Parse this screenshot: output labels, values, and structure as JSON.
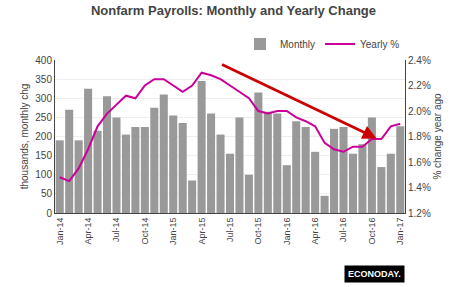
{
  "chart_data": {
    "type": "bar",
    "title": "Nonfarm Payrolls: Monthly and Yearly Change",
    "y_label": "thousands, monthly chg",
    "y2_label": "% change year ago",
    "categories": [
      "Jan-14",
      null,
      null,
      "Apr-14",
      null,
      null,
      "Jul-14",
      null,
      null,
      "Oct-14",
      null,
      null,
      "Jan-15",
      null,
      null,
      "Apr-15",
      null,
      null,
      "Jul-15",
      null,
      null,
      "Oct-15",
      null,
      null,
      "Jan-16",
      null,
      null,
      "Apr-16",
      null,
      null,
      "Jul-16",
      null,
      null,
      "Oct-16",
      null,
      null,
      "Jan-17"
    ],
    "series": [
      {
        "name": "Monthly",
        "type": "bar",
        "color": "#999999",
        "values": [
          190,
          270,
          190,
          325,
          215,
          305,
          250,
          205,
          225,
          225,
          275,
          310,
          255,
          235,
          85,
          345,
          260,
          205,
          155,
          250,
          100,
          315,
          265,
          260,
          125,
          240,
          225,
          160,
          45,
          220,
          225,
          155,
          180,
          250,
          120,
          155,
          227
        ]
      },
      {
        "name": "Yearly %",
        "type": "line",
        "color": "#cc0099",
        "axis": "y2",
        "values": [
          1.48,
          1.45,
          1.55,
          1.7,
          1.88,
          1.98,
          2.05,
          2.12,
          2.1,
          2.2,
          2.25,
          2.25,
          2.2,
          2.15,
          2.2,
          2.3,
          2.28,
          2.25,
          2.2,
          2.15,
          2.1,
          2.0,
          1.98,
          2.0,
          2.0,
          1.95,
          1.92,
          1.88,
          1.75,
          1.7,
          1.68,
          1.72,
          1.72,
          1.78,
          1.78,
          1.88,
          1.9
        ]
      }
    ],
    "ylim": [
      0,
      400
    ],
    "yticks": [
      0,
      50,
      100,
      150,
      200,
      250,
      300,
      350,
      400
    ],
    "y2lim": [
      1.2,
      2.4
    ],
    "y2ticks": [
      {
        "value": 1.2,
        "label": "1.2%"
      },
      {
        "value": 1.4,
        "label": "1.4%"
      },
      {
        "value": 1.6,
        "label": "1.6%"
      },
      {
        "value": 1.8,
        "label": "1.8%"
      },
      {
        "value": 2.0,
        "label": "2.0%"
      },
      {
        "value": 2.2,
        "label": "2.2%"
      },
      {
        "value": 2.4,
        "label": "2.4%"
      }
    ],
    "grid": true,
    "legend": "upper right",
    "annotations": [
      {
        "text": "ECONODAY."
      },
      {
        "color": "#cc0000",
        "x": 33.5,
        "y": 195,
        "x_from": 17,
        "y_from": 390
      }
    ]
  }
}
